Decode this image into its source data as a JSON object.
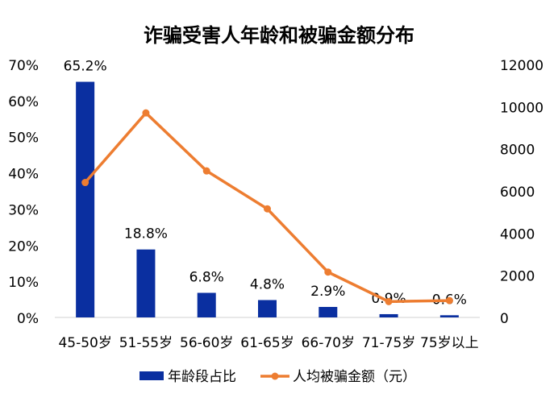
{
  "chart_data": {
    "type": "bar",
    "title": "诈骗受害人年龄和被骗金额分布",
    "categories": [
      "45-50岁",
      "51-55岁",
      "56-60岁",
      "61-65岁",
      "66-70岁",
      "71-75岁",
      "75岁以上"
    ],
    "series": [
      {
        "name": "年龄段占比",
        "type": "bar",
        "axis": "left",
        "values": [
          65.2,
          18.8,
          6.8,
          4.8,
          2.9,
          0.9,
          0.6
        ],
        "labels": [
          "65.2%",
          "18.8%",
          "6.8%",
          "4.8%",
          "2.9%",
          "0.9%",
          "0.6%"
        ],
        "color": "#0A2FA0"
      },
      {
        "name": "人均被骗金额（元）",
        "type": "line",
        "axis": "right",
        "values": [
          6400,
          9700,
          6950,
          5150,
          2150,
          750,
          800
        ],
        "color": "#ED7D31"
      }
    ],
    "y_left": {
      "min": 0,
      "max": 70,
      "ticks": [
        "0%",
        "10%",
        "20%",
        "30%",
        "40%",
        "50%",
        "60%",
        "70%"
      ]
    },
    "y_right": {
      "min": 0,
      "max": 12000,
      "ticks": [
        "0",
        "2000",
        "4000",
        "6000",
        "8000",
        "10000",
        "12000"
      ]
    },
    "grid": false,
    "legend_position": "bottom"
  }
}
